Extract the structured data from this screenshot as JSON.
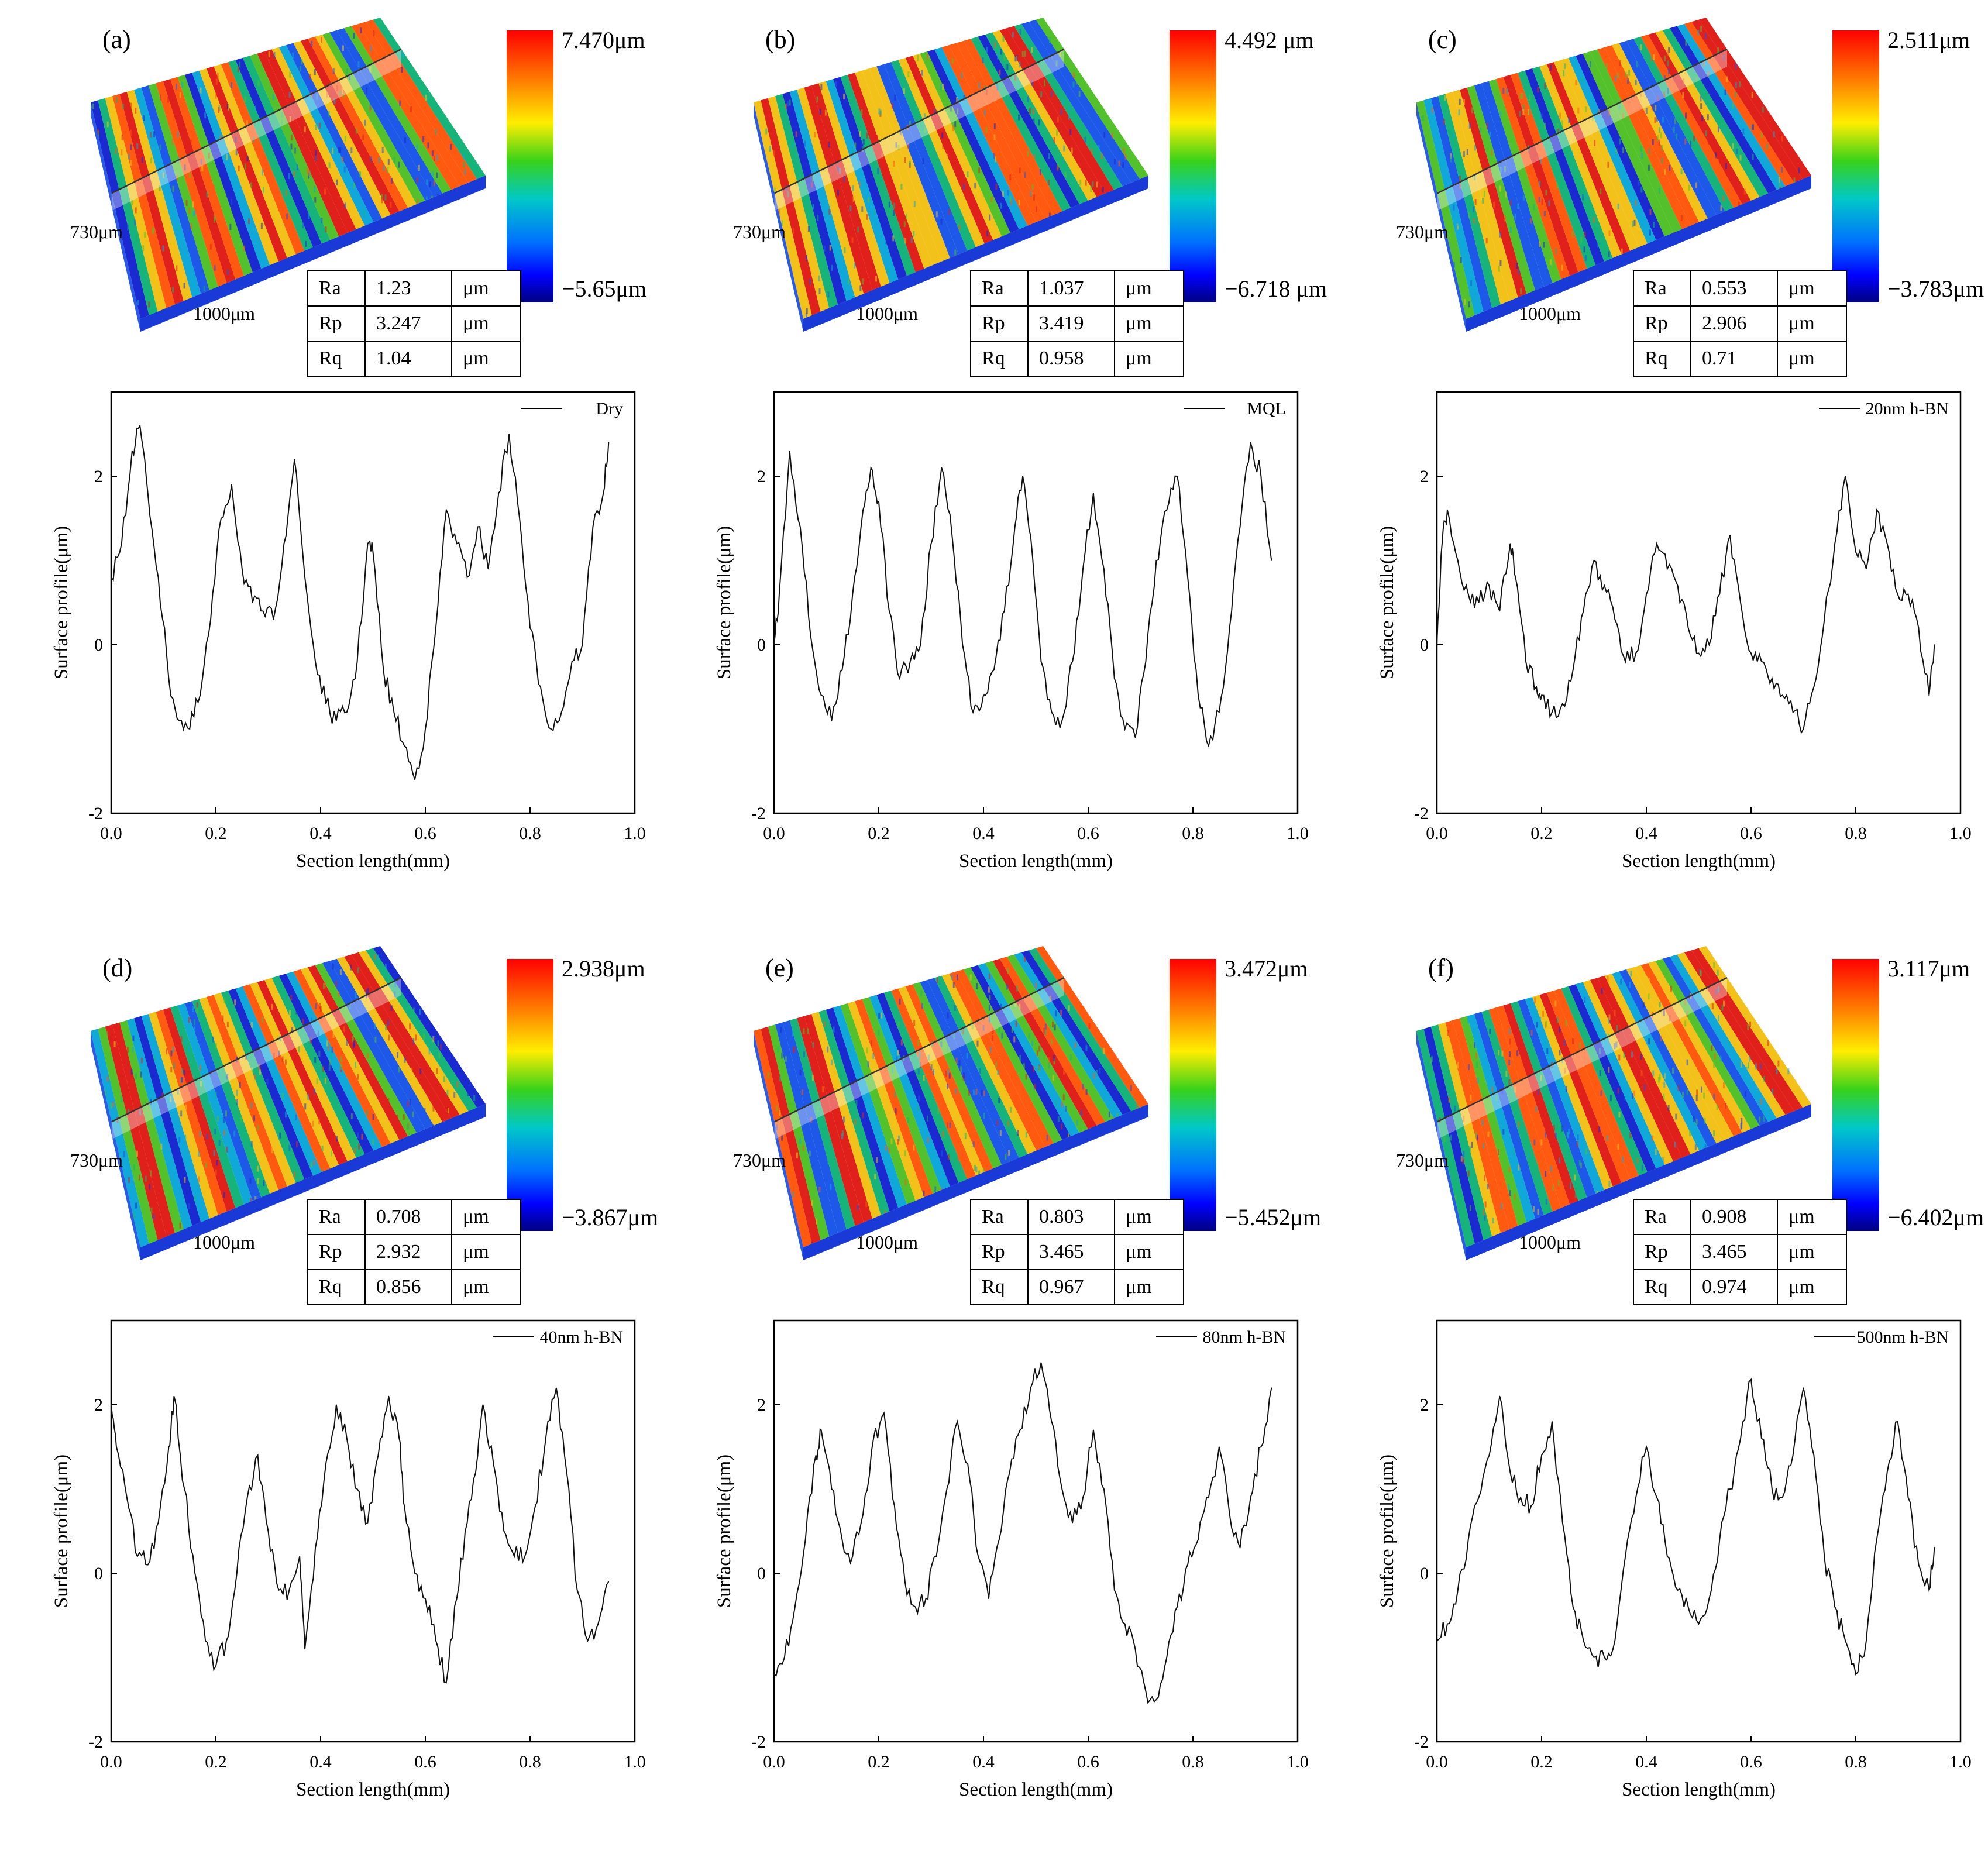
{
  "figure": {
    "panels": [
      {
        "id": "a",
        "label": "(a)",
        "legend": "Dry",
        "colorbar": {
          "max": "7.470μm",
          "min": "−5.65μm"
        },
        "dims": {
          "width": "1000μm",
          "height": "730μm"
        },
        "roughness": [
          {
            "param": "Ra",
            "value": "1.23",
            "unit": "μm"
          },
          {
            "param": "Rp",
            "value": "3.247",
            "unit": "μm"
          },
          {
            "param": "Rq",
            "value": "1.04",
            "unit": "μm"
          }
        ]
      },
      {
        "id": "b",
        "label": "(b)",
        "legend": "MQL",
        "colorbar": {
          "max": "4.492 μm",
          "min": "−6.718 μm"
        },
        "dims": {
          "width": "1000μm",
          "height": "730μm"
        },
        "roughness": [
          {
            "param": "Ra",
            "value": "1.037",
            "unit": "μm"
          },
          {
            "param": "Rp",
            "value": "3.419",
            "unit": "μm"
          },
          {
            "param": "Rq",
            "value": "0.958",
            "unit": "μm"
          }
        ]
      },
      {
        "id": "c",
        "label": "(c)",
        "legend": "20nm h-BN",
        "colorbar": {
          "max": "2.511μm",
          "min": "−3.783μm"
        },
        "dims": {
          "width": "1000μm",
          "height": "730μm"
        },
        "roughness": [
          {
            "param": "Ra",
            "value": "0.553",
            "unit": "μm"
          },
          {
            "param": "Rp",
            "value": "2.906",
            "unit": "μm"
          },
          {
            "param": "Rq",
            "value": "0.71",
            "unit": "μm"
          }
        ]
      },
      {
        "id": "d",
        "label": "(d)",
        "legend": "40nm h-BN",
        "colorbar": {
          "max": "2.938μm",
          "min": "−3.867μm"
        },
        "dims": {
          "width": "1000μm",
          "height": "730μm"
        },
        "roughness": [
          {
            "param": "Ra",
            "value": "0.708",
            "unit": "μm"
          },
          {
            "param": "Rp",
            "value": "2.932",
            "unit": "μm"
          },
          {
            "param": "Rq",
            "value": "0.856",
            "unit": "μm"
          }
        ]
      },
      {
        "id": "e",
        "label": "(e)",
        "legend": "80nm h-BN",
        "colorbar": {
          "max": "3.472μm",
          "min": "−5.452μm"
        },
        "dims": {
          "width": "1000μm",
          "height": "730μm"
        },
        "roughness": [
          {
            "param": "Ra",
            "value": "0.803",
            "unit": "μm"
          },
          {
            "param": "Rp",
            "value": "3.465",
            "unit": "μm"
          },
          {
            "param": "Rq",
            "value": "0.967",
            "unit": "μm"
          }
        ]
      },
      {
        "id": "f",
        "label": "(f)",
        "legend": "500nm h-BN",
        "colorbar": {
          "max": "3.117μm",
          "min": "−6.402μm"
        },
        "dims": {
          "width": "1000μm",
          "height": "730μm"
        },
        "roughness": [
          {
            "param": "Ra",
            "value": "0.908",
            "unit": "μm"
          },
          {
            "param": "Rp",
            "value": "3.465",
            "unit": "μm"
          },
          {
            "param": "Rq",
            "value": "0.974",
            "unit": "μm"
          }
        ]
      }
    ]
  },
  "chart_data": [
    {
      "type": "line",
      "panel": "a",
      "xlabel": "Section length(mm)",
      "ylabel": "Surface profile(μm)",
      "xlim": [
        0,
        1
      ],
      "ylim": [
        -2,
        3
      ],
      "xticks": [
        "0.0",
        "0.2",
        "0.4",
        "0.6",
        "0.8",
        "1.0"
      ],
      "yticks": [
        "-2",
        "0",
        "2"
      ],
      "series": [
        {
          "name": "Dry",
          "x": [
            0.0,
            0.02,
            0.04,
            0.055,
            0.07,
            0.09,
            0.11,
            0.13,
            0.15,
            0.17,
            0.19,
            0.21,
            0.23,
            0.25,
            0.27,
            0.29,
            0.31,
            0.33,
            0.35,
            0.37,
            0.39,
            0.41,
            0.43,
            0.45,
            0.47,
            0.49,
            0.5,
            0.52,
            0.54,
            0.56,
            0.58,
            0.6,
            0.62,
            0.64,
            0.66,
            0.68,
            0.7,
            0.72,
            0.74,
            0.76,
            0.78,
            0.8,
            0.82,
            0.84,
            0.86,
            0.88,
            0.9,
            0.92,
            0.94,
            0.95
          ],
          "y": [
            0.8,
            1.2,
            2.3,
            2.6,
            1.8,
            0.8,
            -0.4,
            -0.9,
            -1.0,
            -0.6,
            0.3,
            1.5,
            1.9,
            0.9,
            0.5,
            0.4,
            0.3,
            1.2,
            2.2,
            0.8,
            -0.2,
            -0.7,
            -0.9,
            -0.8,
            -0.2,
            1.2,
            1.1,
            -0.3,
            -0.8,
            -1.2,
            -1.6,
            -1.0,
            0.2,
            1.6,
            1.2,
            0.8,
            1.4,
            0.9,
            1.8,
            2.5,
            1.5,
            0.2,
            -0.5,
            -1.0,
            -0.8,
            -0.2,
            0.0,
            1.4,
            1.8,
            2.4
          ]
        }
      ]
    },
    {
      "type": "line",
      "panel": "b",
      "xlabel": "Section length(mm)",
      "ylabel": "Surface profile(μm)",
      "xlim": [
        0,
        1
      ],
      "ylim": [
        -2,
        3
      ],
      "xticks": [
        "0.0",
        "0.2",
        "0.4",
        "0.6",
        "0.8",
        "1.0"
      ],
      "yticks": [
        "-2",
        "0",
        "2"
      ],
      "series": [
        {
          "name": "MQL",
          "x": [
            0.0,
            0.01,
            0.03,
            0.05,
            0.07,
            0.09,
            0.11,
            0.13,
            0.15,
            0.17,
            0.185,
            0.2,
            0.22,
            0.24,
            0.26,
            0.28,
            0.3,
            0.32,
            0.34,
            0.36,
            0.38,
            0.4,
            0.42,
            0.44,
            0.46,
            0.475,
            0.49,
            0.51,
            0.53,
            0.55,
            0.57,
            0.59,
            0.61,
            0.63,
            0.65,
            0.67,
            0.69,
            0.71,
            0.73,
            0.75,
            0.77,
            0.79,
            0.81,
            0.83,
            0.85,
            0.87,
            0.89,
            0.91,
            0.93,
            0.95
          ],
          "y": [
            0.0,
            0.6,
            2.3,
            1.4,
            0.1,
            -0.6,
            -0.9,
            -0.3,
            0.6,
            1.6,
            2.1,
            1.7,
            0.4,
            -0.4,
            -0.2,
            0.0,
            1.2,
            2.1,
            1.3,
            0.0,
            -0.8,
            -0.6,
            -0.3,
            0.4,
            1.4,
            2.0,
            1.3,
            -0.2,
            -0.8,
            -0.9,
            -0.2,
            0.9,
            1.8,
            0.9,
            -0.4,
            -1.0,
            -1.1,
            -0.2,
            1.0,
            1.6,
            2.0,
            0.8,
            -0.6,
            -1.2,
            -0.8,
            0.2,
            1.4,
            2.4,
            2.0,
            1.0
          ]
        }
      ]
    },
    {
      "type": "line",
      "panel": "c",
      "xlabel": "Section length(mm)",
      "ylabel": "Surface profile(μm)",
      "xlim": [
        0,
        1
      ],
      "ylim": [
        -2,
        3
      ],
      "xticks": [
        "0.0",
        "0.2",
        "0.4",
        "0.6",
        "0.8",
        "1.0"
      ],
      "yticks": [
        "-2",
        "0",
        "2"
      ],
      "series": [
        {
          "name": "20nm h-BN",
          "x": [
            0.0,
            0.01,
            0.02,
            0.04,
            0.06,
            0.08,
            0.1,
            0.12,
            0.14,
            0.15,
            0.17,
            0.19,
            0.2,
            0.22,
            0.24,
            0.26,
            0.28,
            0.3,
            0.32,
            0.34,
            0.36,
            0.38,
            0.4,
            0.42,
            0.44,
            0.46,
            0.48,
            0.5,
            0.52,
            0.54,
            0.56,
            0.58,
            0.6,
            0.62,
            0.64,
            0.66,
            0.68,
            0.7,
            0.72,
            0.74,
            0.76,
            0.78,
            0.8,
            0.82,
            0.84,
            0.86,
            0.88,
            0.9,
            0.92,
            0.94,
            0.95
          ],
          "y": [
            0.0,
            1.2,
            1.6,
            1.0,
            0.6,
            0.5,
            0.7,
            0.4,
            1.2,
            0.8,
            -0.2,
            -0.5,
            -0.6,
            -0.8,
            -0.7,
            -0.3,
            0.4,
            1.0,
            0.7,
            0.3,
            -0.2,
            -0.1,
            0.6,
            1.2,
            0.9,
            0.7,
            0.2,
            -0.1,
            0.0,
            0.6,
            1.3,
            0.5,
            -0.1,
            -0.2,
            -0.4,
            -0.6,
            -0.8,
            -1.0,
            -0.5,
            0.3,
            1.2,
            2.0,
            1.1,
            0.9,
            1.6,
            1.2,
            0.6,
            0.6,
            0.2,
            -0.6,
            0.0
          ]
        }
      ]
    },
    {
      "type": "line",
      "panel": "d",
      "xlabel": "Section length(mm)",
      "ylabel": "Surface profile(μm)",
      "xlim": [
        0,
        1
      ],
      "ylim": [
        -2,
        3
      ],
      "xticks": [
        "0.0",
        "0.2",
        "0.4",
        "0.6",
        "0.8",
        "1.0"
      ],
      "yticks": [
        "-2",
        "0",
        "2"
      ],
      "series": [
        {
          "name": "40nm h-BN",
          "x": [
            0.0,
            0.01,
            0.03,
            0.05,
            0.07,
            0.09,
            0.11,
            0.12,
            0.14,
            0.16,
            0.18,
            0.2,
            0.22,
            0.24,
            0.26,
            0.28,
            0.3,
            0.32,
            0.34,
            0.36,
            0.37,
            0.39,
            0.41,
            0.43,
            0.45,
            0.47,
            0.49,
            0.51,
            0.53,
            0.55,
            0.56,
            0.58,
            0.6,
            0.62,
            0.64,
            0.66,
            0.68,
            0.7,
            0.71,
            0.73,
            0.75,
            0.77,
            0.79,
            0.81,
            0.83,
            0.85,
            0.87,
            0.89,
            0.91,
            0.93,
            0.95
          ],
          "y": [
            2.0,
            1.5,
            0.9,
            0.2,
            0.1,
            0.6,
            1.5,
            2.1,
            1.0,
            0.0,
            -0.8,
            -1.1,
            -0.8,
            0.0,
            0.9,
            1.4,
            0.5,
            -0.2,
            -0.2,
            0.2,
            -0.9,
            0.3,
            1.3,
            2.0,
            1.6,
            1.0,
            0.6,
            1.4,
            2.1,
            1.6,
            0.8,
            0.0,
            -0.3,
            -0.8,
            -1.3,
            -0.3,
            0.6,
            1.4,
            2.0,
            1.3,
            0.5,
            0.2,
            0.2,
            0.8,
            1.6,
            2.2,
            1.2,
            -0.2,
            -0.8,
            -0.6,
            -0.1
          ]
        }
      ]
    },
    {
      "type": "line",
      "panel": "e",
      "xlabel": "Section length(mm)",
      "ylabel": "Surface profile(μm)",
      "xlim": [
        0,
        1
      ],
      "ylim": [
        -2,
        3
      ],
      "xticks": [
        "0.0",
        "0.2",
        "0.4",
        "0.6",
        "0.8",
        "1.0"
      ],
      "yticks": [
        "-2",
        "0",
        "2"
      ],
      "series": [
        {
          "name": "80nm h-BN",
          "x": [
            0.0,
            0.02,
            0.04,
            0.06,
            0.08,
            0.09,
            0.11,
            0.13,
            0.15,
            0.17,
            0.19,
            0.21,
            0.23,
            0.25,
            0.27,
            0.29,
            0.31,
            0.33,
            0.35,
            0.37,
            0.39,
            0.41,
            0.43,
            0.45,
            0.47,
            0.49,
            0.51,
            0.53,
            0.55,
            0.57,
            0.59,
            0.61,
            0.63,
            0.65,
            0.67,
            0.69,
            0.71,
            0.73,
            0.75,
            0.77,
            0.79,
            0.81,
            0.83,
            0.85,
            0.87,
            0.89,
            0.91,
            0.93,
            0.95
          ],
          "y": [
            -1.2,
            -1.0,
            -0.4,
            0.4,
            1.4,
            1.7,
            1.0,
            0.4,
            0.2,
            0.7,
            1.6,
            1.9,
            0.8,
            -0.1,
            -0.4,
            -0.3,
            0.2,
            1.0,
            1.8,
            1.3,
            0.2,
            -0.3,
            0.4,
            1.2,
            1.7,
            2.2,
            2.5,
            1.8,
            1.0,
            0.6,
            0.9,
            1.7,
            1.0,
            -0.2,
            -0.6,
            -0.9,
            -1.4,
            -1.5,
            -1.0,
            -0.4,
            0.1,
            0.4,
            0.9,
            1.5,
            0.7,
            0.3,
            0.9,
            1.5,
            2.2
          ]
        }
      ]
    },
    {
      "type": "line",
      "panel": "f",
      "xlabel": "Section length(mm)",
      "ylabel": "Surface profile(μm)",
      "xlim": [
        0,
        1
      ],
      "ylim": [
        -2,
        3
      ],
      "xticks": [
        "0.0",
        "0.2",
        "0.4",
        "0.6",
        "0.8",
        "1.0"
      ],
      "yticks": [
        "-2",
        "0",
        "2"
      ],
      "series": [
        {
          "name": "500nm h-BN",
          "x": [
            0.0,
            0.02,
            0.04,
            0.06,
            0.08,
            0.1,
            0.12,
            0.14,
            0.16,
            0.18,
            0.2,
            0.22,
            0.24,
            0.26,
            0.28,
            0.3,
            0.32,
            0.34,
            0.36,
            0.38,
            0.4,
            0.42,
            0.44,
            0.46,
            0.48,
            0.5,
            0.52,
            0.54,
            0.56,
            0.58,
            0.6,
            0.62,
            0.64,
            0.66,
            0.68,
            0.7,
            0.72,
            0.74,
            0.76,
            0.78,
            0.8,
            0.82,
            0.84,
            0.86,
            0.88,
            0.9,
            0.92,
            0.94,
            0.95
          ],
          "y": [
            -0.8,
            -0.6,
            -0.2,
            0.4,
            0.9,
            1.4,
            2.1,
            1.2,
            0.9,
            0.8,
            1.4,
            1.8,
            0.6,
            -0.4,
            -0.8,
            -1.0,
            -1.0,
            -0.8,
            0.2,
            0.9,
            1.5,
            0.9,
            0.2,
            -0.2,
            -0.4,
            -0.6,
            -0.3,
            0.4,
            1.0,
            1.6,
            2.3,
            1.6,
            1.0,
            0.9,
            1.4,
            2.2,
            1.4,
            0.2,
            -0.4,
            -0.8,
            -1.2,
            -0.8,
            0.4,
            1.2,
            1.8,
            0.9,
            0.1,
            -0.2,
            0.3
          ]
        }
      ]
    }
  ]
}
